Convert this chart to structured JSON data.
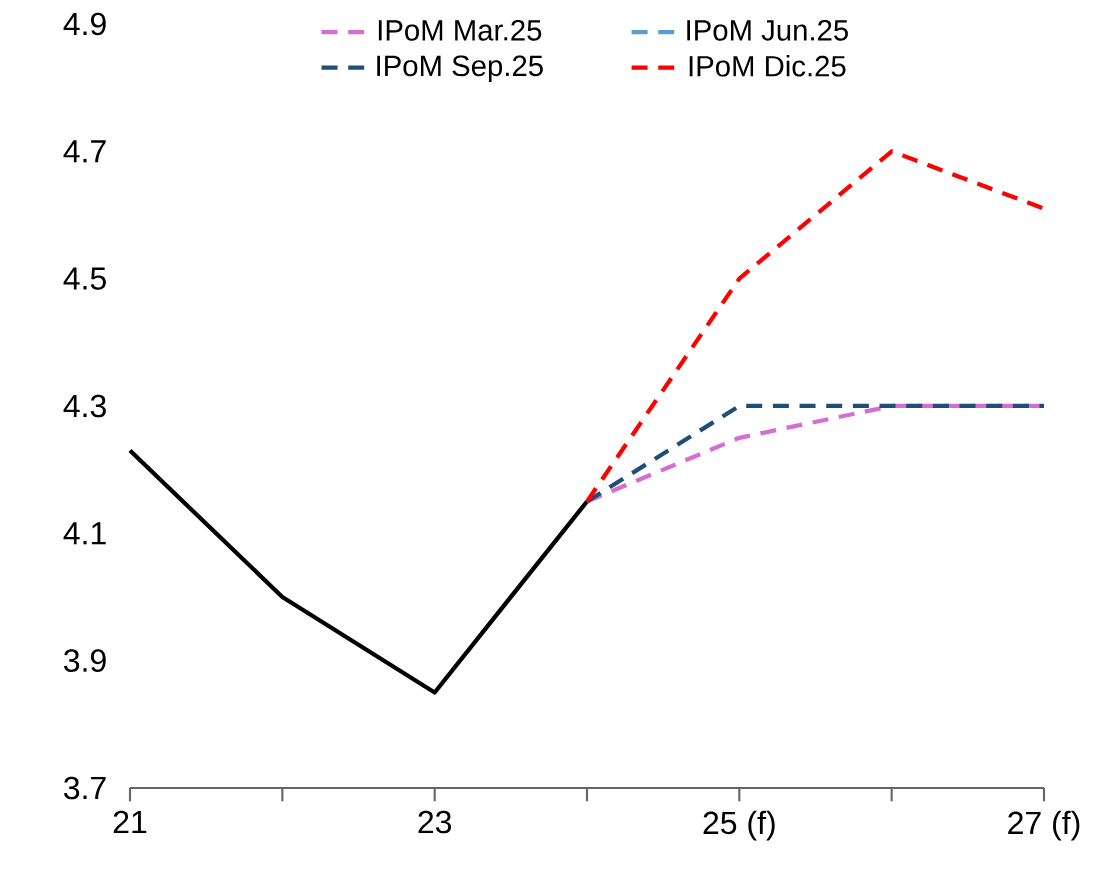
{
  "chart_data": {
    "type": "line",
    "categories": [
      "21",
      null,
      "23",
      null,
      "25 (f)",
      null,
      "27 (f)"
    ],
    "ylim": [
      3.7,
      4.9
    ],
    "yticks": [
      3.7,
      3.9,
      4.1,
      4.3,
      4.5,
      4.7,
      4.9
    ],
    "grid": false,
    "legend": "top",
    "marker": "none",
    "series": [
      {
        "color": "#000000",
        "line_style": "solid",
        "values": [
          4.23,
          4.0,
          3.85,
          4.15,
          null,
          null,
          null
        ]
      },
      {
        "name": "IPoM Mar.25",
        "color": "#d66ed2",
        "line_style": "dashed",
        "values": [
          null,
          null,
          null,
          4.15,
          4.25,
          4.3,
          4.3
        ]
      },
      {
        "name": "IPoM Jun.25",
        "color": "#5b9bd5",
        "line_style": "dashed",
        "values": [
          null,
          null,
          null,
          null,
          null,
          null,
          null
        ]
      },
      {
        "name": "IPoM Sep.25",
        "color": "#1f4e79",
        "line_style": "dashed",
        "values": [
          null,
          null,
          null,
          4.15,
          4.3,
          4.3,
          4.3
        ]
      },
      {
        "name": "IPoM Dic.25",
        "color": "#ff0000",
        "line_style": "dashed",
        "values": [
          null,
          null,
          null,
          4.15,
          4.5,
          4.7,
          4.61
        ]
      }
    ]
  }
}
